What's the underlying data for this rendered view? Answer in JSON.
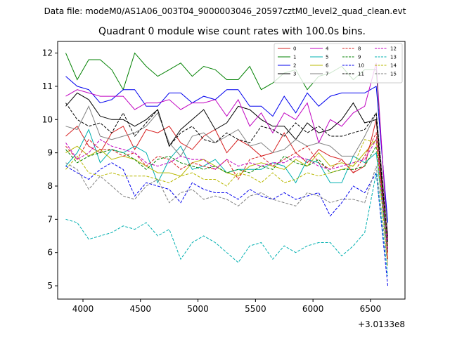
{
  "chart_data": {
    "type": "line",
    "suptitle": "Data file: modeM0/AS1A06_003T04_9000003046_20597cztM0_level2_quad_clean.evt",
    "title": "Quadrant 0 module wise count rates with 100.0s bins.",
    "xlabel": "",
    "ylabel": "",
    "x_offset_label": "+3.0133e8",
    "xlim": [
      3780,
      6800
    ],
    "ylim": [
      4.6,
      12.35
    ],
    "xticks": [
      4000,
      4500,
      5000,
      5500,
      6000,
      6500
    ],
    "yticks": [
      5,
      6,
      7,
      8,
      9,
      10,
      11,
      12
    ],
    "legend_position": "top-right",
    "x": [
      3850,
      3950,
      4050,
      4150,
      4250,
      4350,
      4450,
      4550,
      4650,
      4750,
      4850,
      4950,
      5050,
      5150,
      5250,
      5350,
      5450,
      5550,
      5650,
      5750,
      5850,
      5950,
      6050,
      6150,
      6250,
      6350,
      6450,
      6550,
      6650
    ],
    "series": [
      {
        "name": "0",
        "color": "#d62020",
        "style": "solid",
        "values": [
          9.5,
          9.8,
          9.2,
          9.0,
          9.6,
          9.8,
          9.1,
          9.7,
          9.6,
          9.8,
          9.3,
          9.1,
          9.5,
          9.7,
          9.0,
          9.4,
          9.2,
          8.9,
          9.0,
          9.6,
          9.0,
          8.7,
          9.1,
          8.9,
          8.8,
          8.4,
          8.6,
          10.0,
          5.8
        ]
      },
      {
        "name": "1",
        "color": "#008000",
        "style": "solid",
        "values": [
          12.0,
          11.2,
          11.8,
          11.8,
          11.5,
          10.9,
          12.0,
          11.6,
          11.3,
          11.5,
          11.7,
          11.3,
          11.6,
          11.5,
          11.2,
          11.2,
          11.6,
          10.9,
          11.1,
          11.4,
          11.5,
          10.9,
          11.3,
          11.4,
          11.6,
          11.2,
          11.5,
          11.5,
          6.5
        ]
      },
      {
        "name": "2",
        "color": "#0000ee",
        "style": "solid",
        "values": [
          11.3,
          11.0,
          10.9,
          10.5,
          10.6,
          10.9,
          10.9,
          10.4,
          10.4,
          10.8,
          10.8,
          10.5,
          10.7,
          10.6,
          10.9,
          10.9,
          10.4,
          10.4,
          10.1,
          10.7,
          10.2,
          10.8,
          10.4,
          10.7,
          10.8,
          10.8,
          10.8,
          11.0,
          6.9
        ]
      },
      {
        "name": "3",
        "color": "#000000",
        "style": "solid",
        "values": [
          10.4,
          10.8,
          10.6,
          10.1,
          10.0,
          10.0,
          9.8,
          10.0,
          10.3,
          9.2,
          9.7,
          10.0,
          10.3,
          9.7,
          9.9,
          10.4,
          10.3,
          10.0,
          9.8,
          9.8,
          9.4,
          9.9,
          9.6,
          9.7,
          10.0,
          10.5,
          9.9,
          10.0,
          6.2
        ]
      },
      {
        "name": "4",
        "color": "#c000c0",
        "style": "solid",
        "values": [
          10.7,
          10.9,
          10.8,
          10.7,
          10.7,
          10.7,
          10.3,
          10.5,
          10.5,
          10.6,
          10.3,
          10.5,
          10.5,
          10.6,
          10.1,
          10.6,
          9.8,
          10.2,
          9.6,
          10.2,
          10.0,
          10.5,
          9.3,
          10.0,
          9.8,
          10.2,
          10.4,
          11.7,
          6.4
        ]
      },
      {
        "name": "5",
        "color": "#00b0b0",
        "style": "solid",
        "values": [
          8.6,
          9.0,
          9.7,
          8.7,
          9.1,
          9.0,
          9.2,
          9.0,
          8.1,
          8.8,
          9.2,
          8.5,
          8.6,
          8.8,
          8.4,
          8.5,
          8.5,
          8.5,
          8.7,
          8.6,
          8.1,
          8.8,
          8.7,
          8.1,
          8.1,
          8.9,
          8.7,
          9.0,
          6.0
        ]
      },
      {
        "name": "6",
        "color": "#b8b800",
        "style": "solid",
        "values": [
          9.0,
          9.2,
          8.9,
          9.1,
          8.8,
          8.9,
          8.8,
          8.6,
          8.4,
          8.4,
          8.3,
          8.7,
          8.8,
          8.6,
          8.4,
          8.3,
          8.6,
          8.7,
          8.6,
          8.5,
          8.8,
          8.6,
          9.0,
          8.6,
          8.7,
          8.6,
          9.0,
          9.4,
          6.2
        ]
      },
      {
        "name": "7",
        "color": "#808080",
        "style": "solid",
        "values": [
          9.8,
          9.7,
          10.4,
          9.5,
          9.4,
          9.5,
          9.6,
          9.8,
          10.2,
          9.3,
          8.9,
          9.5,
          9.6,
          9.3,
          9.5,
          9.7,
          9.2,
          9.3,
          9.0,
          9.1,
          9.4,
          9.2,
          9.3,
          9.2,
          8.9,
          8.9,
          9.5,
          10.2,
          6.6
        ]
      },
      {
        "name": "8",
        "color": "#d62020",
        "style": "dashed",
        "values": [
          9.2,
          8.8,
          9.4,
          9.1,
          9.1,
          8.9,
          9.0,
          8.6,
          8.9,
          8.8,
          8.5,
          8.7,
          8.6,
          8.5,
          8.8,
          8.2,
          8.8,
          8.9,
          8.6,
          8.8,
          9.0,
          9.2,
          8.7,
          8.5,
          8.8,
          8.4,
          8.9,
          9.6,
          6.0
        ]
      },
      {
        "name": "9",
        "color": "#008000",
        "style": "dashed",
        "values": [
          9.1,
          8.7,
          8.9,
          9.0,
          9.1,
          9.0,
          8.8,
          8.5,
          8.8,
          8.9,
          8.7,
          8.6,
          8.5,
          8.6,
          8.4,
          8.5,
          8.4,
          8.6,
          8.5,
          8.9,
          8.7,
          8.6,
          8.8,
          8.4,
          8.5,
          8.5,
          8.6,
          9.2,
          6.1
        ]
      },
      {
        "name": "10",
        "color": "#0000ee",
        "style": "dashed",
        "values": [
          8.6,
          8.4,
          8.2,
          8.5,
          8.7,
          8.5,
          7.7,
          8.1,
          8.0,
          7.9,
          7.5,
          8.1,
          7.9,
          7.8,
          7.8,
          7.6,
          7.9,
          7.7,
          7.6,
          7.8,
          7.6,
          7.7,
          7.8,
          7.1,
          7.5,
          8.0,
          7.8,
          8.4,
          5.0
        ]
      },
      {
        "name": "11",
        "color": "#000000",
        "style": "dashed",
        "values": [
          10.5,
          10.0,
          9.8,
          9.9,
          9.6,
          10.2,
          9.5,
          9.9,
          10.3,
          9.2,
          9.6,
          9.8,
          9.4,
          9.3,
          9.6,
          9.4,
          9.3,
          9.8,
          9.7,
          9.5,
          9.9,
          9.6,
          9.8,
          9.5,
          9.5,
          9.6,
          9.7,
          10.2,
          6.3
        ]
      },
      {
        "name": "12",
        "color": "#c000c0",
        "style": "dashed",
        "values": [
          9.3,
          8.8,
          9.0,
          9.4,
          9.2,
          9.1,
          9.0,
          8.7,
          8.6,
          8.7,
          8.9,
          8.8,
          8.8,
          8.5,
          8.8,
          8.6,
          8.7,
          8.6,
          8.7,
          8.7,
          8.9,
          8.8,
          8.6,
          8.5,
          8.6,
          8.7,
          8.8,
          9.4,
          6.1
        ]
      },
      {
        "name": "13",
        "color": "#00b0b0",
        "style": "dashed",
        "values": [
          7.0,
          6.9,
          6.4,
          6.5,
          6.6,
          6.8,
          6.7,
          6.9,
          6.5,
          6.7,
          5.8,
          6.3,
          6.5,
          6.3,
          6.0,
          5.7,
          6.2,
          6.3,
          5.8,
          6.2,
          6.0,
          6.2,
          6.3,
          6.3,
          5.9,
          6.2,
          6.6,
          8.4,
          5.3
        ]
      },
      {
        "name": "14",
        "color": "#b8b800",
        "style": "dashed",
        "values": [
          8.5,
          8.9,
          8.4,
          8.3,
          8.4,
          8.3,
          8.3,
          8.3,
          8.2,
          8.1,
          8.3,
          8.4,
          8.2,
          8.2,
          8.0,
          8.4,
          8.3,
          8.1,
          8.4,
          8.1,
          8.2,
          8.4,
          8.3,
          8.4,
          8.5,
          8.6,
          9.4,
          9.3,
          5.6
        ]
      },
      {
        "name": "15",
        "color": "#808080",
        "style": "dashed",
        "values": [
          8.7,
          8.5,
          7.9,
          8.3,
          8.0,
          7.7,
          7.6,
          8.0,
          8.2,
          7.5,
          7.8,
          7.9,
          7.6,
          7.7,
          7.6,
          7.4,
          7.7,
          7.8,
          7.6,
          7.5,
          7.4,
          7.8,
          7.7,
          7.5,
          7.6,
          7.6,
          7.5,
          8.6,
          5.6
        ]
      }
    ]
  }
}
